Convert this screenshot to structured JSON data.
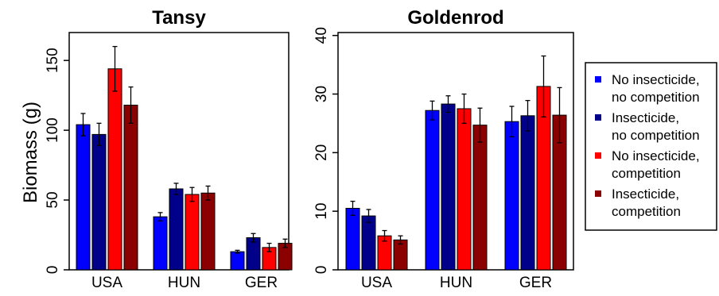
{
  "colors": {
    "no_insecticide_no_competition": "#0000ff",
    "insecticide_no_competition": "#00008b",
    "no_insecticide_competition": "#ff0000",
    "insecticide_competition": "#8b0000"
  },
  "y_axis_label": "Biomass (g)",
  "legend": {
    "placement": "right",
    "entries": [
      {
        "line1": "No insecticide,",
        "line2": "no competition"
      },
      {
        "line1": "Insecticide,",
        "line2": "no competition"
      },
      {
        "line1": "No insecticide,",
        "line2": "competition"
      },
      {
        "line1": "Insecticide,",
        "line2": "competition"
      }
    ]
  },
  "chart_data": [
    {
      "type": "bar",
      "title": "Tansy",
      "ylabel": "Biomass (g)",
      "categories": [
        "USA",
        "HUN",
        "GER"
      ],
      "ylim": [
        0,
        170
      ],
      "yticks": [
        0,
        50,
        100,
        150
      ],
      "grid": false,
      "series": [
        {
          "name": "No insecticide, no competition",
          "values": [
            104,
            38,
            13
          ],
          "errors": [
            8,
            3,
            1
          ]
        },
        {
          "name": "Insecticide, no competition",
          "values": [
            97,
            58,
            23
          ],
          "errors": [
            8,
            4,
            3
          ]
        },
        {
          "name": "No insecticide, competition",
          "values": [
            144,
            54,
            16
          ],
          "errors": [
            16,
            5,
            3
          ]
        },
        {
          "name": "Insecticide, competition",
          "values": [
            118,
            55,
            19
          ],
          "errors": [
            13,
            5,
            3
          ]
        }
      ]
    },
    {
      "type": "bar",
      "title": "Goldenrod",
      "ylabel": "",
      "categories": [
        "USA",
        "HUN",
        "GER"
      ],
      "ylim": [
        0,
        40.5
      ],
      "yticks": [
        0,
        10,
        20,
        30,
        40
      ],
      "grid": false,
      "series": [
        {
          "name": "No insecticide, no competition",
          "values": [
            10.5,
            27.2,
            25.3
          ],
          "errors": [
            1.2,
            1.6,
            2.6
          ]
        },
        {
          "name": "Insecticide, no competition",
          "values": [
            9.2,
            28.3,
            26.3
          ],
          "errors": [
            1.1,
            1.4,
            2.6
          ]
        },
        {
          "name": "No insecticide, competition",
          "values": [
            5.8,
            27.5,
            31.3
          ],
          "errors": [
            0.9,
            2.5,
            5.2
          ]
        },
        {
          "name": "Insecticide, competition",
          "values": [
            5.1,
            24.7,
            26.4
          ],
          "errors": [
            0.7,
            2.9,
            4.7
          ]
        }
      ]
    }
  ]
}
